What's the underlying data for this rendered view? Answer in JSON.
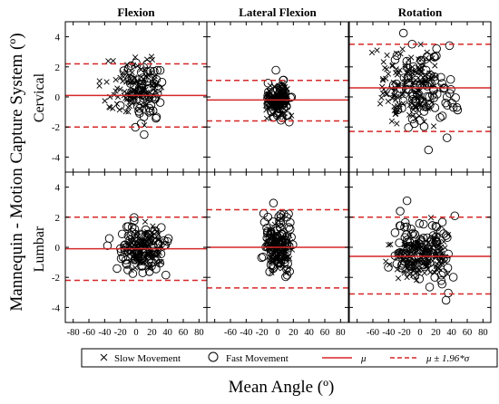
{
  "figure": {
    "ylabel": "Mannequin - Motion Capture System (º)",
    "xlabel": "Mean Angle (º)"
  },
  "legend": {
    "slow": "Slow Movement",
    "fast": "Fast Movement",
    "mu": "μ",
    "band": "μ ± 1.96*σ"
  },
  "colors": {
    "mean_line": "#d62728",
    "markers": "#000000",
    "frame": "#000000"
  },
  "chart_data": {
    "type": "scatter",
    "layout": "2x3 small multiples (Bland-Altman)",
    "columns": [
      "Flexion",
      "Lateral Flexion",
      "Rotation"
    ],
    "rows": [
      "Cervical",
      "Lumbar"
    ],
    "xlim": [
      -90,
      90
    ],
    "ylim": [
      -5,
      5
    ],
    "xticks": [
      -80,
      -60,
      -40,
      -20,
      0,
      20,
      40,
      60,
      80
    ],
    "yticks": [
      -4,
      -2,
      0,
      2,
      4
    ],
    "series": [
      {
        "name": "Slow Movement",
        "marker": "x"
      },
      {
        "name": "Fast Movement",
        "marker": "o"
      }
    ],
    "panels": [
      {
        "row": "Cervical",
        "col": "Flexion",
        "mu": 0.1,
        "upper": 2.2,
        "lower": -2.0,
        "slow": {
          "x_center": 0,
          "x_spread": 55,
          "y_center": 0.6,
          "y_spread": 1.2,
          "n": 90,
          "x_range": [
            -55,
            40
          ]
        },
        "fast": {
          "x_center": 10,
          "x_spread": 40,
          "y_center": 0.2,
          "y_spread": 1.3,
          "n": 75,
          "x_range": [
            -25,
            45
          ]
        }
      },
      {
        "row": "Cervical",
        "col": "Lateral Flexion",
        "mu": -0.2,
        "upper": 1.1,
        "lower": -1.6,
        "slow": {
          "x_center": 0,
          "x_spread": 18,
          "y_center": -0.2,
          "y_spread": 0.6,
          "n": 110,
          "x_range": [
            -20,
            20
          ]
        },
        "fast": {
          "x_center": 0,
          "x_spread": 18,
          "y_center": -0.2,
          "y_spread": 0.8,
          "n": 70,
          "x_range": [
            -22,
            22
          ]
        }
      },
      {
        "row": "Cervical",
        "col": "Rotation",
        "mu": 0.6,
        "upper": 3.5,
        "lower": -2.3,
        "slow": {
          "x_center": -10,
          "x_spread": 60,
          "y_center": 0.8,
          "y_spread": 1.5,
          "n": 140,
          "x_range": [
            -75,
            30
          ]
        },
        "fast": {
          "x_center": 10,
          "x_spread": 60,
          "y_center": 0.4,
          "y_spread": 1.6,
          "n": 90,
          "x_range": [
            -60,
            65
          ]
        }
      },
      {
        "row": "Lumbar",
        "col": "Flexion",
        "mu": -0.1,
        "upper": 2.0,
        "lower": -2.2,
        "slow": {
          "x_center": 10,
          "x_spread": 25,
          "y_center": -0.1,
          "y_spread": 0.8,
          "n": 140,
          "x_range": [
            -25,
            40
          ]
        },
        "fast": {
          "x_center": 10,
          "x_spread": 45,
          "y_center": -0.2,
          "y_spread": 1.2,
          "n": 80,
          "x_range": [
            -45,
            55
          ]
        }
      },
      {
        "row": "Lumbar",
        "col": "Lateral Flexion",
        "mu": 0.0,
        "upper": 2.5,
        "lower": -2.7,
        "slow": {
          "x_center": 0,
          "x_spread": 18,
          "y_center": 0.0,
          "y_spread": 0.9,
          "n": 120,
          "x_range": [
            -22,
            22
          ]
        },
        "fast": {
          "x_center": 0,
          "x_spread": 22,
          "y_center": 0.2,
          "y_spread": 1.4,
          "n": 85,
          "x_range": [
            -25,
            30
          ]
        }
      },
      {
        "row": "Lumbar",
        "col": "Rotation",
        "mu": -0.6,
        "upper": 2.0,
        "lower": -3.1,
        "slow": {
          "x_center": 0,
          "x_spread": 45,
          "y_center": -0.6,
          "y_spread": 1.0,
          "n": 150,
          "x_range": [
            -50,
            55
          ]
        },
        "fast": {
          "x_center": 0,
          "x_spread": 45,
          "y_center": -0.5,
          "y_spread": 1.4,
          "n": 100,
          "x_range": [
            -50,
            60
          ]
        }
      }
    ]
  }
}
